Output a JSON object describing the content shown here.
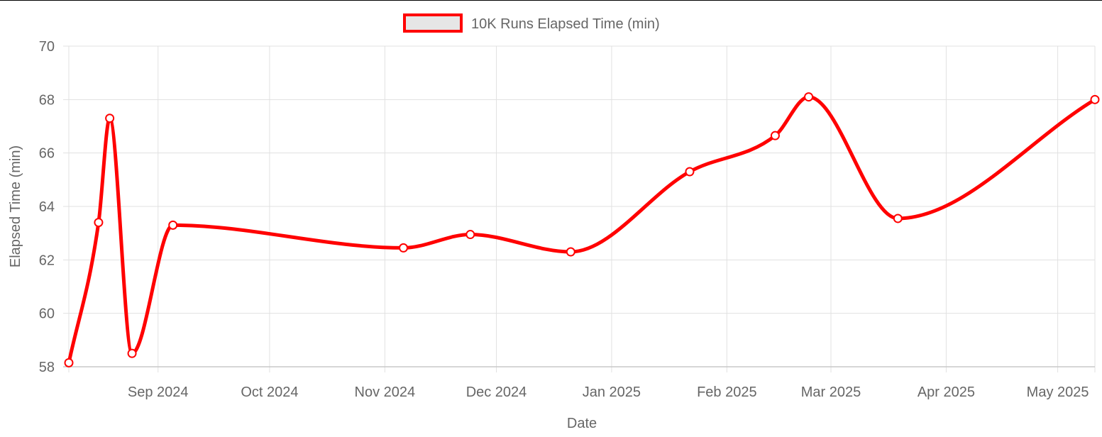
{
  "chart_data": {
    "type": "line",
    "legend": {
      "position": "top",
      "label": "10K Runs Elapsed Time (min)"
    },
    "xlabel": "Date",
    "ylabel": "Elapsed Time (min)",
    "ylim": [
      58,
      70
    ],
    "yticks": [
      58,
      60,
      62,
      64,
      66,
      68,
      70
    ],
    "xlim": [
      "2024-08-08",
      "2025-05-11"
    ],
    "xticks": [
      {
        "date": "2024-09-01",
        "label": "Sep 2024"
      },
      {
        "date": "2024-10-01",
        "label": "Oct 2024"
      },
      {
        "date": "2024-11-01",
        "label": "Nov 2024"
      },
      {
        "date": "2024-12-01",
        "label": "Dec 2024"
      },
      {
        "date": "2025-01-01",
        "label": "Jan 2025"
      },
      {
        "date": "2025-02-01",
        "label": "Feb 2025"
      },
      {
        "date": "2025-03-01",
        "label": "Mar 2025"
      },
      {
        "date": "2025-04-01",
        "label": "Apr 2025"
      },
      {
        "date": "2025-05-01",
        "label": "May 2025"
      }
    ],
    "grid": true,
    "series": [
      {
        "name": "10K Runs Elapsed Time (min)",
        "color": "#ff0000",
        "point_fill": "#ffffff",
        "points": [
          {
            "x": "2024-08-08",
            "y": 58.15
          },
          {
            "x": "2024-08-16",
            "y": 63.4
          },
          {
            "x": "2024-08-19",
            "y": 67.3
          },
          {
            "x": "2024-08-25",
            "y": 58.5
          },
          {
            "x": "2024-09-05",
            "y": 63.3
          },
          {
            "x": "2024-11-06",
            "y": 62.45
          },
          {
            "x": "2024-11-24",
            "y": 62.95
          },
          {
            "x": "2024-12-21",
            "y": 62.3
          },
          {
            "x": "2025-01-22",
            "y": 65.3
          },
          {
            "x": "2025-02-14",
            "y": 66.65
          },
          {
            "x": "2025-02-23",
            "y": 68.1
          },
          {
            "x": "2025-03-19",
            "y": 63.55
          },
          {
            "x": "2025-05-11",
            "y": 68.0
          }
        ]
      }
    ]
  }
}
